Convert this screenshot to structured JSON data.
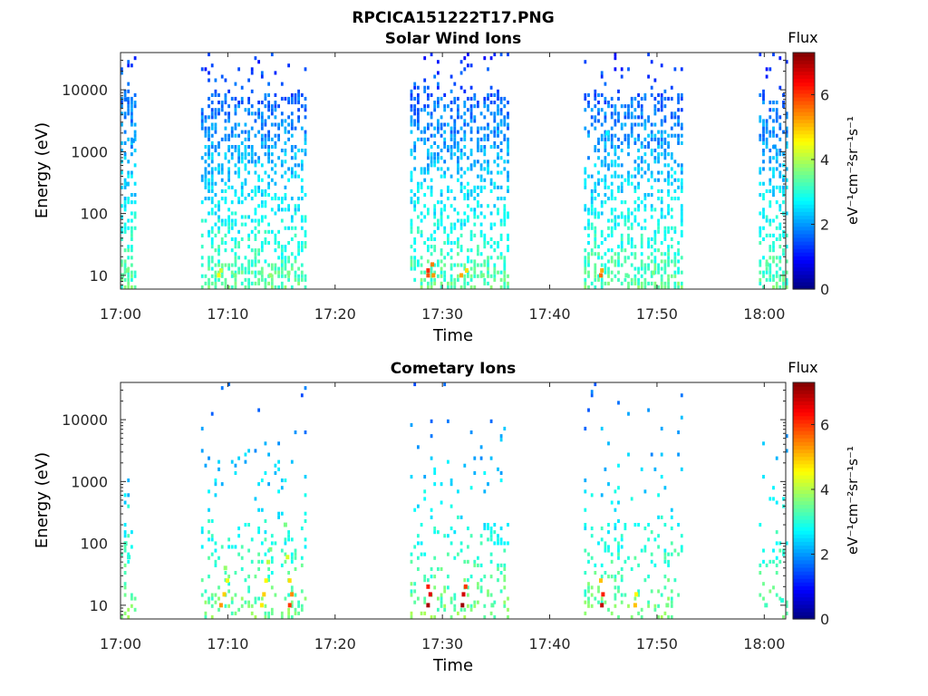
{
  "figure": {
    "title": "RPCICA151222T17.PNG"
  },
  "panels": [
    {
      "id": "solar-wind",
      "title": "Solar Wind Ions",
      "xlabel": "Time",
      "ylabel": "Energy (eV)",
      "colorbar_title": "Flux",
      "colorbar_units": "eV⁻¹cm⁻²sr⁻¹s⁻¹"
    },
    {
      "id": "cometary",
      "title": "Cometary Ions",
      "xlabel": "Time",
      "ylabel": "Energy (eV)",
      "colorbar_title": "Flux",
      "colorbar_units": "eV⁻¹cm⁻²sr⁻¹s⁻¹"
    }
  ],
  "chart_data": [
    {
      "type": "heatmap",
      "title": "Solar Wind Ions",
      "xlabel": "Time",
      "ylabel": "Energy (eV)",
      "x_ticks": [
        "17:00",
        "17:10",
        "17:20",
        "17:30",
        "17:40",
        "17:50",
        "18:00"
      ],
      "y_ticks": [
        10,
        100,
        1000,
        10000
      ],
      "y_scale": "log",
      "xlim_min": [
        0,
        62
      ],
      "ylim_eV": [
        6,
        40000
      ],
      "colorbar": {
        "label": "Flux",
        "ticks": [
          0,
          2,
          4,
          6
        ],
        "range": [
          0,
          7.3
        ],
        "colormap": "jet"
      },
      "data_intervals_min": [
        [
          0,
          1.3
        ],
        [
          7.5,
          17.2
        ],
        [
          27,
          36.3
        ],
        [
          43.2,
          52.5
        ],
        [
          59.5,
          62
        ]
      ],
      "cells": [
        {
          "t": 0.0,
          "e": 10,
          "flux": 3.4
        },
        {
          "t": 0.5,
          "e": 12,
          "flux": 3.6
        },
        {
          "t": 0.5,
          "e": 300,
          "flux": 2.3
        },
        {
          "t": 1.0,
          "e": 1500,
          "flux": 2.0
        },
        {
          "t": 0.3,
          "e": 7000,
          "flux": 1.7
        },
        {
          "t": 9.0,
          "e": 10,
          "flux": 4.6
        },
        {
          "t": 9.2,
          "e": 12,
          "flux": 4.2
        },
        {
          "t": 10.5,
          "e": 10,
          "flux": 3.6
        },
        {
          "t": 12.8,
          "e": 11,
          "flux": 3.4
        },
        {
          "t": 13.8,
          "e": 10,
          "flux": 3.8
        },
        {
          "t": 15.5,
          "e": 11,
          "flux": 3.6
        },
        {
          "t": 28.5,
          "e": 10,
          "flux": 5.8
        },
        {
          "t": 28.5,
          "e": 12,
          "flux": 6.1
        },
        {
          "t": 28.9,
          "e": 15,
          "flux": 5.5
        },
        {
          "t": 29.0,
          "e": 10,
          "flux": 5.3
        },
        {
          "t": 31.6,
          "e": 10,
          "flux": 5.2
        },
        {
          "t": 32.1,
          "e": 12,
          "flux": 4.8
        },
        {
          "t": 33.6,
          "e": 10,
          "flux": 3.6
        },
        {
          "t": 44.6,
          "e": 10,
          "flux": 5.6
        },
        {
          "t": 44.7,
          "e": 12,
          "flux": 5.2
        },
        {
          "t": 45.2,
          "e": 2000,
          "flux": 2.7
        },
        {
          "t": 47.0,
          "e": 10,
          "flux": 3.4
        },
        {
          "t": 49.5,
          "e": 11,
          "flux": 3.6
        },
        {
          "t": 60.1,
          "e": 15,
          "flux": 3.4
        },
        {
          "t": 60.8,
          "e": 1200,
          "flux": 2.0
        }
      ]
    },
    {
      "type": "heatmap",
      "title": "Cometary Ions",
      "xlabel": "Time",
      "ylabel": "Energy (eV)",
      "x_ticks": [
        "17:00",
        "17:10",
        "17:20",
        "17:30",
        "17:40",
        "17:50",
        "18:00"
      ],
      "y_ticks": [
        10,
        100,
        1000,
        10000
      ],
      "y_scale": "log",
      "xlim_min": [
        0,
        62
      ],
      "ylim_eV": [
        6,
        40000
      ],
      "colorbar": {
        "label": "Flux",
        "ticks": [
          0,
          2,
          4,
          6
        ],
        "range": [
          0,
          7.3
        ],
        "colormap": "jet"
      },
      "data_intervals_min": [
        [
          0,
          1.3
        ],
        [
          7.5,
          17.2
        ],
        [
          27,
          36.3
        ],
        [
          43.2,
          52.5
        ],
        [
          59.5,
          62
        ]
      ],
      "cells": [
        {
          "t": 0.3,
          "e": 100,
          "flux": 3.2
        },
        {
          "t": 0.6,
          "e": 60,
          "flux": 3.0
        },
        {
          "t": 9.2,
          "e": 10,
          "flux": 5.3
        },
        {
          "t": 9.5,
          "e": 15,
          "flux": 4.9
        },
        {
          "t": 9.8,
          "e": 25,
          "flux": 4.4
        },
        {
          "t": 9.6,
          "e": 40,
          "flux": 3.8
        },
        {
          "t": 13.0,
          "e": 10,
          "flux": 4.7
        },
        {
          "t": 13.2,
          "e": 15,
          "flux": 4.9
        },
        {
          "t": 13.4,
          "e": 25,
          "flux": 4.6
        },
        {
          "t": 13.6,
          "e": 50,
          "flux": 4.1
        },
        {
          "t": 13.8,
          "e": 80,
          "flux": 3.6
        },
        {
          "t": 15.6,
          "e": 10,
          "flux": 6.0
        },
        {
          "t": 15.8,
          "e": 15,
          "flux": 5.4
        },
        {
          "t": 15.6,
          "e": 25,
          "flux": 4.8
        },
        {
          "t": 15.4,
          "e": 60,
          "flux": 4.3
        },
        {
          "t": 15.2,
          "e": 200,
          "flux": 3.6
        },
        {
          "t": 28.5,
          "e": 10,
          "flux": 7.0
        },
        {
          "t": 28.7,
          "e": 15,
          "flux": 6.6
        },
        {
          "t": 28.5,
          "e": 20,
          "flux": 6.2
        },
        {
          "t": 31.7,
          "e": 10,
          "flux": 7.1
        },
        {
          "t": 31.8,
          "e": 15,
          "flux": 6.7
        },
        {
          "t": 32.0,
          "e": 20,
          "flux": 6.0
        },
        {
          "t": 34.5,
          "e": 10,
          "flux": 3.4
        },
        {
          "t": 44.7,
          "e": 10,
          "flux": 6.8
        },
        {
          "t": 44.8,
          "e": 15,
          "flux": 6.2
        },
        {
          "t": 44.6,
          "e": 25,
          "flux": 5.0
        },
        {
          "t": 47.8,
          "e": 10,
          "flux": 5.0
        },
        {
          "t": 47.9,
          "e": 15,
          "flux": 4.6
        },
        {
          "t": 50.8,
          "e": 10,
          "flux": 3.6
        },
        {
          "t": 60.0,
          "e": 10,
          "flux": 3.2
        },
        {
          "t": 61.5,
          "e": 12,
          "flux": 3.0
        }
      ]
    }
  ]
}
